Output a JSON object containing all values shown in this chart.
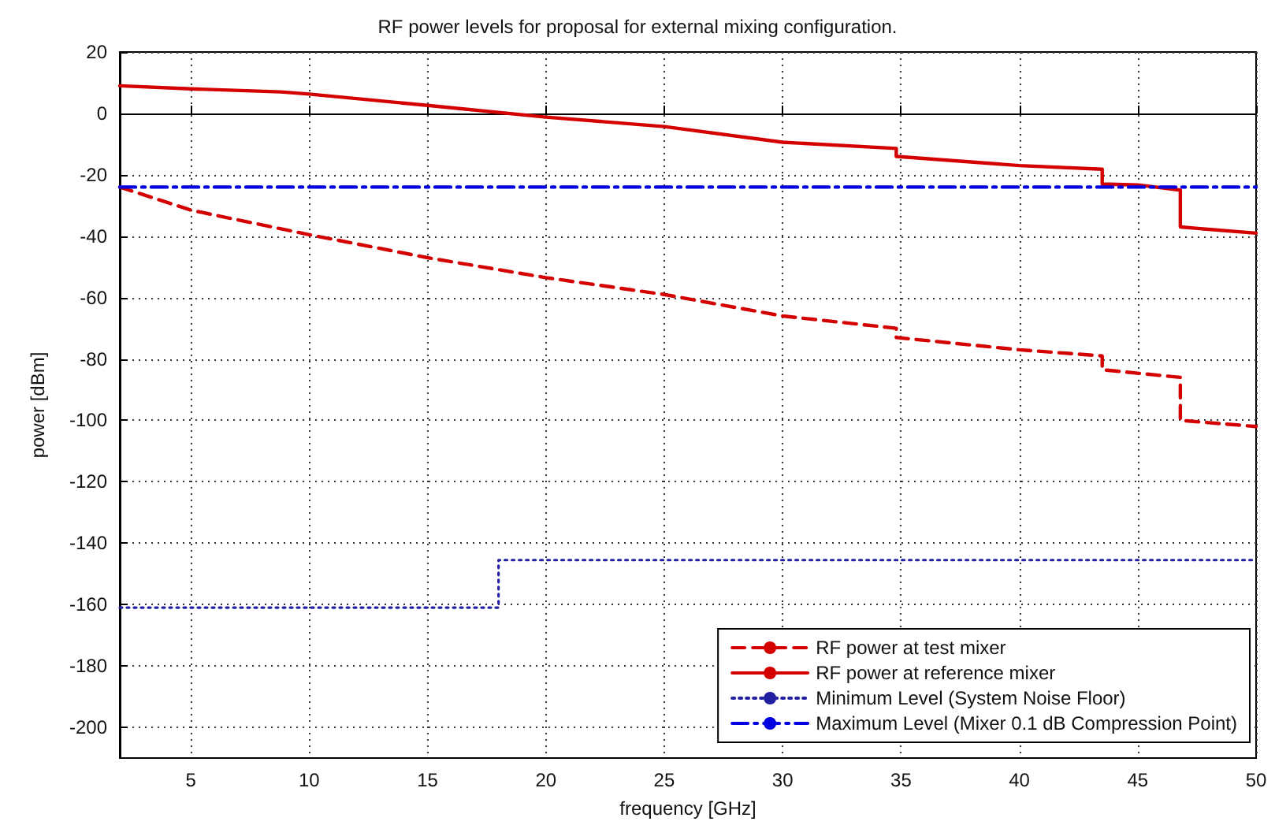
{
  "chart_data": {
    "type": "line",
    "title": "RF power levels for proposal for external mixing configuration.",
    "xlabel": "frequency [GHz]",
    "ylabel": "power [dBm]",
    "xlim": [
      2,
      50
    ],
    "xticks": [
      5,
      10,
      15,
      20,
      25,
      30,
      35,
      40,
      45,
      50
    ],
    "ylim": [
      -210,
      20
    ],
    "yticks": [
      -200,
      -180,
      -160,
      -140,
      -120,
      -100,
      -80,
      -60,
      -40,
      -20,
      0,
      20
    ],
    "grid": true,
    "legend": "bottom right",
    "marker": "none",
    "series": [
      {
        "name": "RF power at test mixer",
        "color": "#d40000",
        "line_style": "dashed",
        "x": [
          2,
          5,
          10,
          15,
          20,
          25,
          30,
          34.8,
          34.8,
          40,
          43.5,
          43.5,
          46.8,
          46.8,
          50
        ],
        "values": [
          -24,
          -31.5,
          -39.5,
          -47,
          -53.5,
          -59,
          -66,
          -70,
          -73,
          -77,
          -79,
          -83.5,
          -86,
          -100,
          -102
        ]
      },
      {
        "name": "RF power at reference mixer",
        "color": "#d40000",
        "line_style": "solid",
        "x": [
          2,
          5,
          8.8,
          10,
          15,
          20,
          25,
          30,
          34.8,
          34.8,
          40,
          43.5,
          43.5,
          45,
          46.8,
          46.8,
          50
        ],
        "values": [
          9,
          8,
          7,
          6.3,
          2.6,
          -1.2,
          -4.3,
          -9.4,
          -11.4,
          -14,
          -17,
          -18.2,
          -23,
          -23.3,
          -25,
          -37,
          -39
        ]
      },
      {
        "name": "Minimum Level (System Noise Floor)",
        "color": "#2020a0",
        "line_style": "dotted",
        "x": [
          2,
          18,
          18,
          50
        ],
        "values": [
          -161,
          -161,
          -145.5,
          -145.5
        ]
      },
      {
        "name": "Maximum Level (Mixer 0.1 dB Compression Point)",
        "color": "#0000e0",
        "line_style": "dashdot",
        "x": [
          2,
          50
        ],
        "values": [
          -24,
          -24
        ]
      }
    ]
  }
}
